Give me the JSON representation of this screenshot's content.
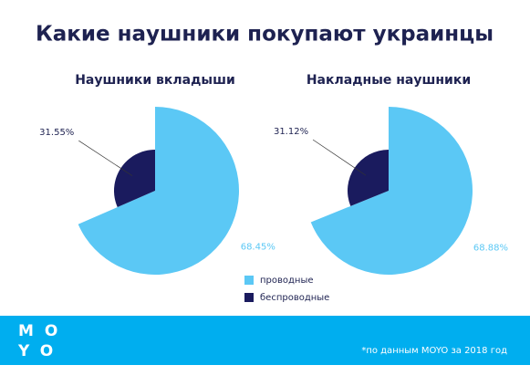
{
  "title": "Какие наушники покупают украинцы",
  "chart_data": [
    {
      "type": "pie",
      "title": "Наушники вкладыши",
      "categories": [
        "проводные",
        "беспроводные"
      ],
      "values": [
        68.45,
        31.55
      ],
      "value_labels": [
        "68.45%",
        "31.55%"
      ],
      "colors": [
        "#5bc8f5",
        "#1a1b5e"
      ]
    },
    {
      "type": "pie",
      "title": "Накладные наушники",
      "categories": [
        "проводные",
        "беспроводные"
      ],
      "values": [
        68.88,
        31.12
      ],
      "value_labels": [
        "68.88%",
        "31.12%"
      ],
      "colors": [
        "#5bc8f5",
        "#1a1b5e"
      ]
    }
  ],
  "footer": {
    "logo": [
      "MO",
      "YO"
    ],
    "note": "*по данным MOYO за 2018 год"
  }
}
